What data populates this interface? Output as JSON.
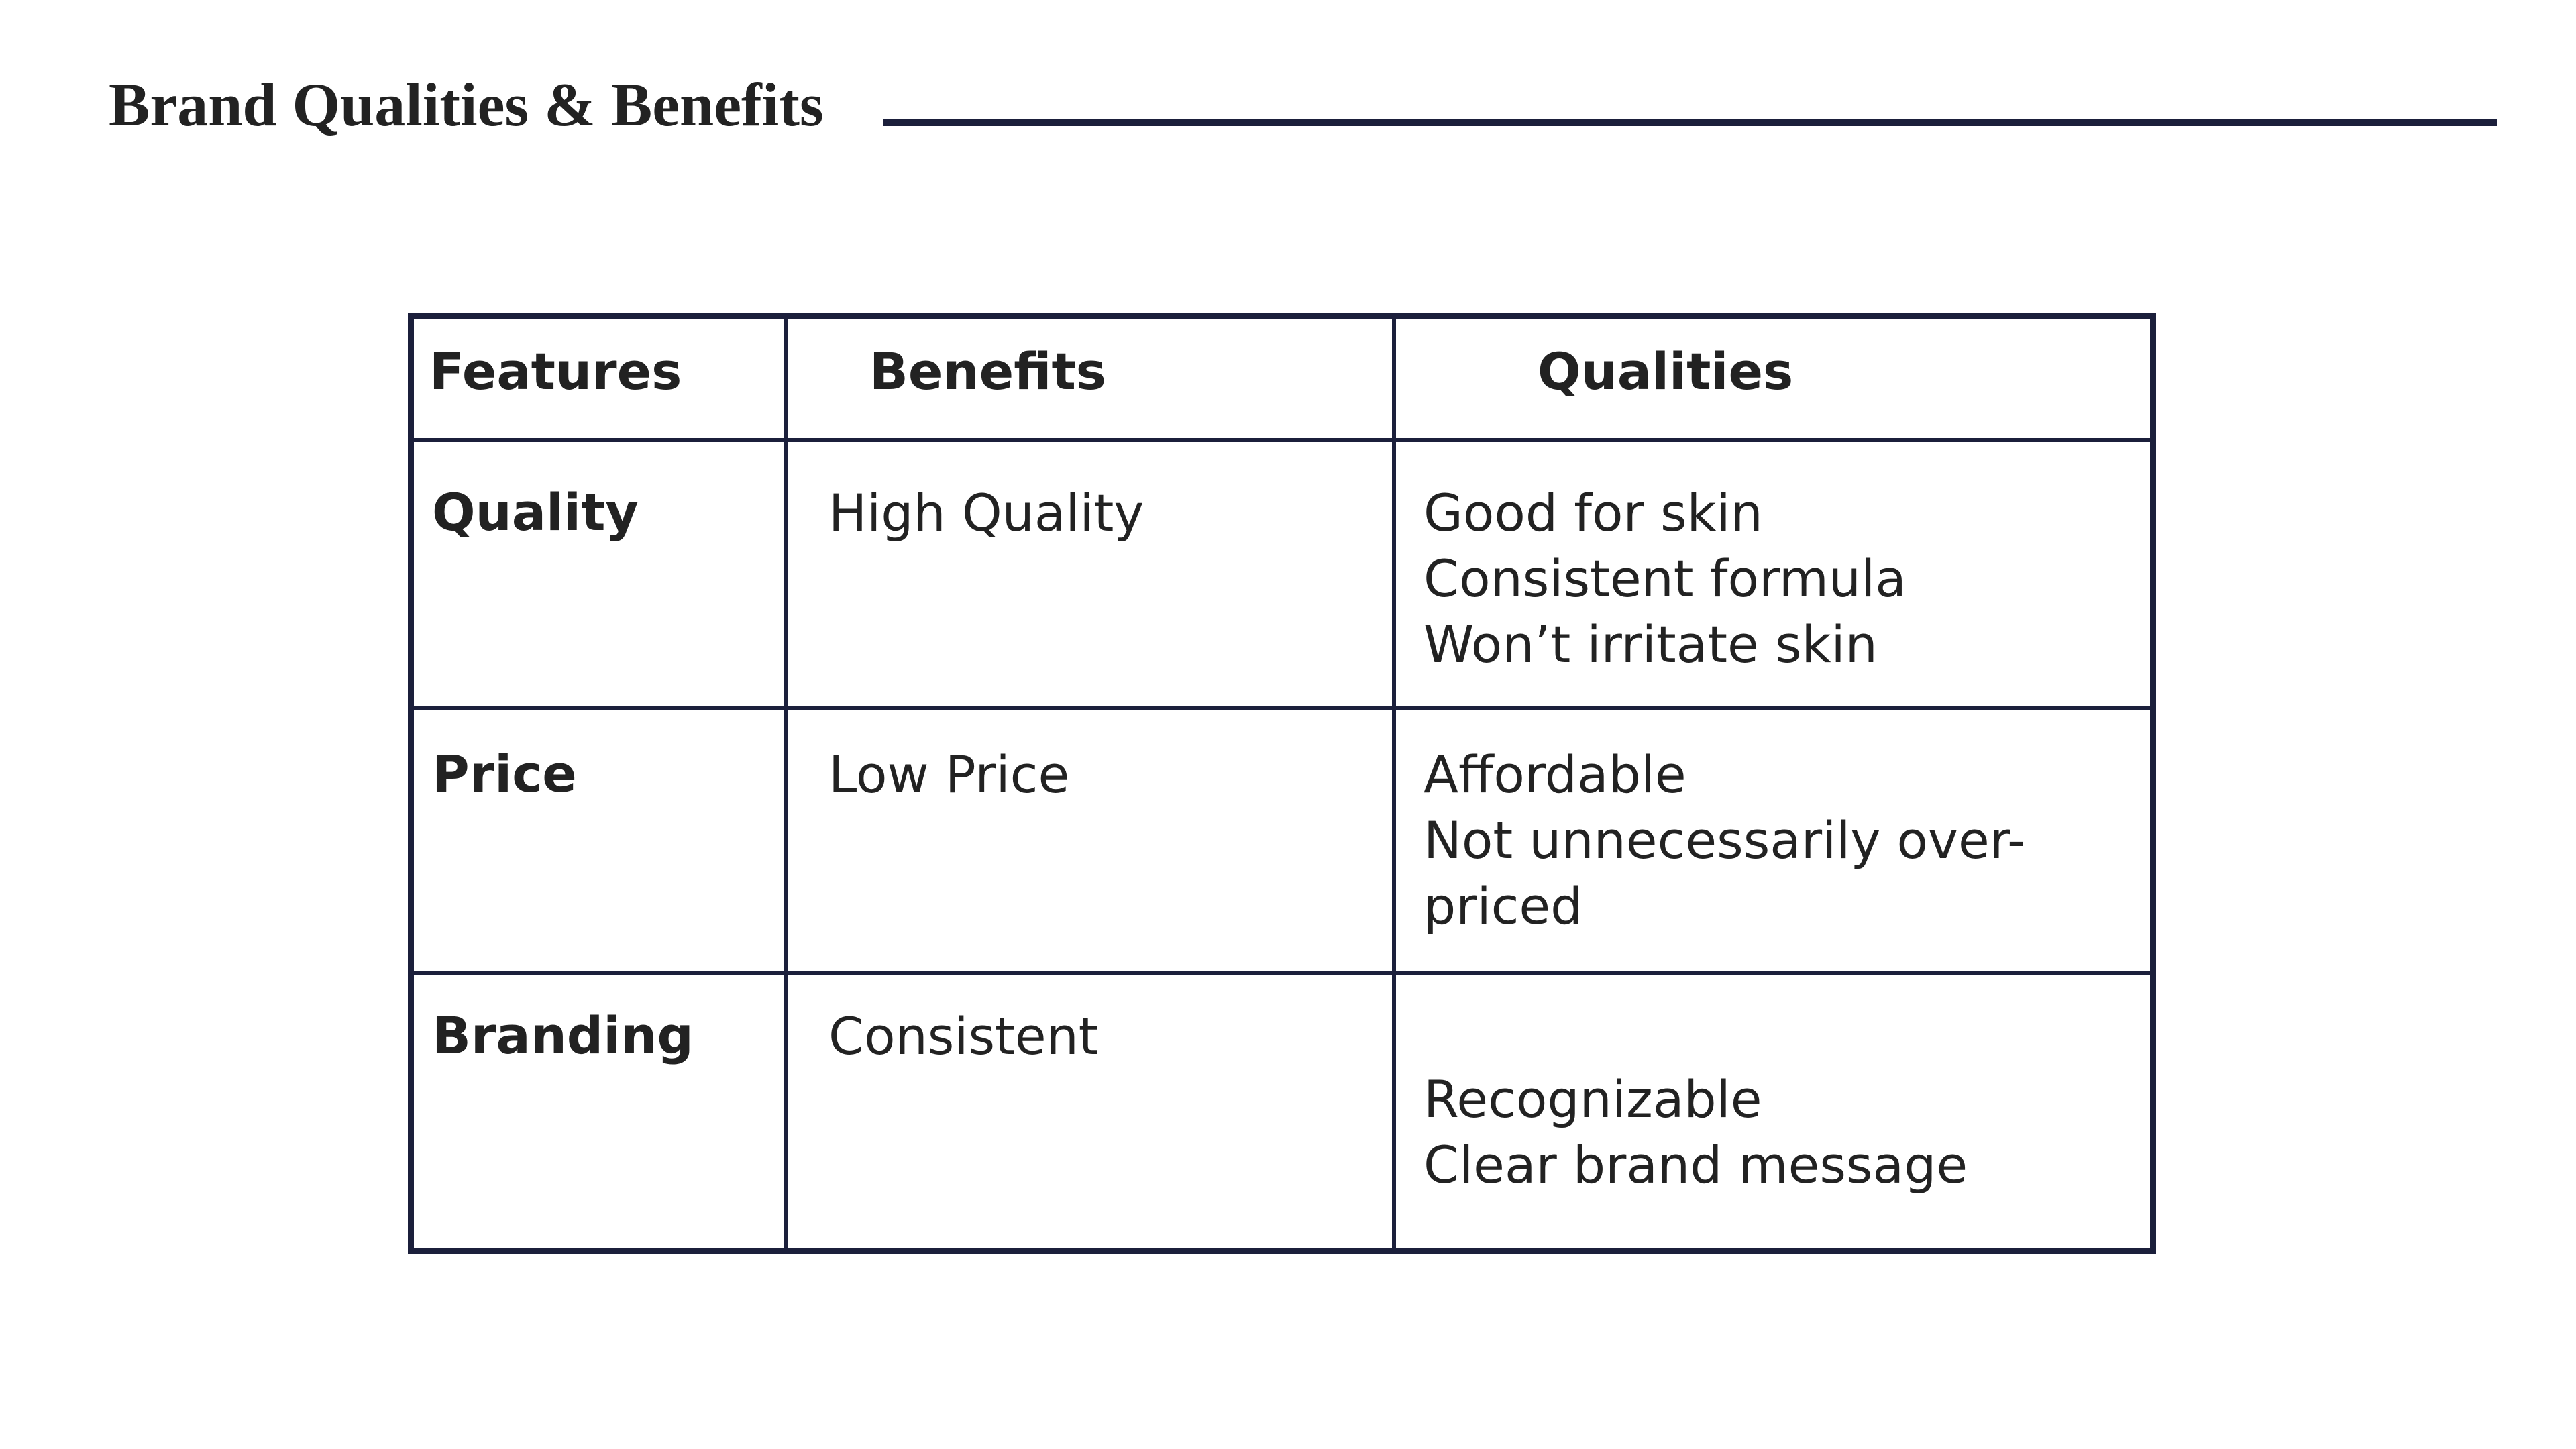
{
  "slide": {
    "title": "Brand Qualities & Benefits"
  },
  "colors": {
    "rule": "#1b1f3b",
    "text": "#222222",
    "background": "#ffffff"
  },
  "table": {
    "headers": {
      "features": "Features",
      "benefits": "Benefits",
      "qualities": "Qualities"
    },
    "rows": [
      {
        "feature": "Quality",
        "benefit": "High Quality",
        "qualities": [
          "Good for skin",
          "Consistent formula",
          "Won’t irritate skin"
        ]
      },
      {
        "feature": "Price",
        "benefit": "Low Price",
        "qualities": [
          "Affordable",
          "Not unnecessarily over-",
          "priced"
        ]
      },
      {
        "feature": "Branding",
        "benefit": "Consistent",
        "qualities": [
          "Recognizable",
          "Clear brand message"
        ]
      }
    ]
  }
}
